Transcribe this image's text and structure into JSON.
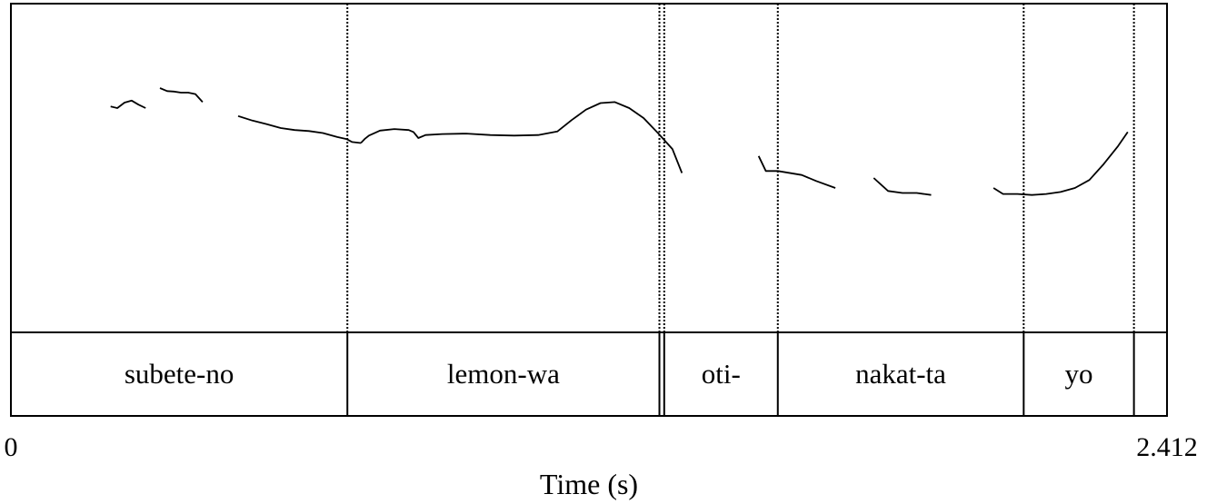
{
  "chart_data": {
    "type": "line",
    "title": "",
    "xlabel": "Time (s)",
    "ylabel": "",
    "xlim": [
      0,
      2.412
    ],
    "x_tick_labels": [
      "0",
      "2.412"
    ],
    "grid": false,
    "pitch_contours": [
      [
        [
          0.208,
          0.615
        ],
        [
          0.222,
          0.6
        ],
        [
          0.237,
          0.655
        ],
        [
          0.252,
          0.675
        ],
        [
          0.266,
          0.635
        ],
        [
          0.281,
          0.6
        ]
      ],
      [
        [
          0.311,
          0.8
        ],
        [
          0.326,
          0.77
        ],
        [
          0.34,
          0.765
        ],
        [
          0.355,
          0.755
        ],
        [
          0.37,
          0.755
        ],
        [
          0.385,
          0.74
        ],
        [
          0.4,
          0.66
        ]
      ],
      [
        [
          0.474,
          0.52
        ],
        [
          0.504,
          0.475
        ],
        [
          0.533,
          0.44
        ],
        [
          0.563,
          0.4
        ],
        [
          0.592,
          0.38
        ],
        [
          0.622,
          0.37
        ],
        [
          0.651,
          0.35
        ],
        [
          0.681,
          0.31
        ],
        [
          0.7,
          0.29
        ],
        [
          0.712,
          0.26
        ],
        [
          0.73,
          0.25
        ]
      ],
      [
        [
          0.73,
          0.25
        ],
        [
          0.738,
          0.29
        ],
        [
          0.747,
          0.325
        ],
        [
          0.77,
          0.375
        ],
        [
          0.8,
          0.39
        ],
        [
          0.83,
          0.38
        ],
        [
          0.84,
          0.36
        ],
        [
          0.85,
          0.3
        ],
        [
          0.865,
          0.33
        ],
        [
          0.9,
          0.34
        ],
        [
          0.95,
          0.345
        ],
        [
          1.0,
          0.33
        ],
        [
          1.05,
          0.325
        ],
        [
          1.1,
          0.33
        ],
        [
          1.14,
          0.365
        ],
        [
          1.17,
          0.48
        ],
        [
          1.2,
          0.585
        ],
        [
          1.23,
          0.65
        ],
        [
          1.26,
          0.66
        ],
        [
          1.29,
          0.6
        ],
        [
          1.32,
          0.5
        ],
        [
          1.35,
          0.35
        ],
        [
          1.38,
          0.19
        ],
        [
          1.4,
          -0.05
        ]
      ],
      [
        [
          1.56,
          0.12
        ],
        [
          1.575,
          -0.03
        ],
        [
          1.6,
          -0.03
        ],
        [
          1.65,
          -0.07
        ],
        [
          1.68,
          -0.13
        ],
        [
          1.72,
          -0.2
        ]
      ],
      [
        [
          1.8,
          -0.1
        ],
        [
          1.83,
          -0.23
        ],
        [
          1.86,
          -0.25
        ],
        [
          1.89,
          -0.25
        ],
        [
          1.92,
          -0.27
        ]
      ],
      [
        [
          2.05,
          -0.2
        ],
        [
          2.07,
          -0.26
        ],
        [
          2.1,
          -0.26
        ],
        [
          2.13,
          -0.27
        ],
        [
          2.16,
          -0.26
        ],
        [
          2.19,
          -0.24
        ],
        [
          2.22,
          -0.2
        ],
        [
          2.25,
          -0.12
        ],
        [
          2.28,
          0.04
        ],
        [
          2.31,
          0.22
        ],
        [
          2.33,
          0.36
        ]
      ]
    ],
    "segments": [
      {
        "label": "subete-no",
        "start": 0.0,
        "end": 0.702
      },
      {
        "label": "lemon-wa",
        "start": 0.702,
        "end": 1.353
      },
      {
        "label": "oti-",
        "start": 1.363,
        "end": 1.6
      },
      {
        "label": "nakat-ta",
        "start": 1.6,
        "end": 2.113
      },
      {
        "label": "yo",
        "start": 2.113,
        "end": 2.343
      }
    ],
    "segment_boundaries": [
      0.702,
      1.353,
      1.363,
      1.6,
      2.113,
      2.343
    ]
  }
}
